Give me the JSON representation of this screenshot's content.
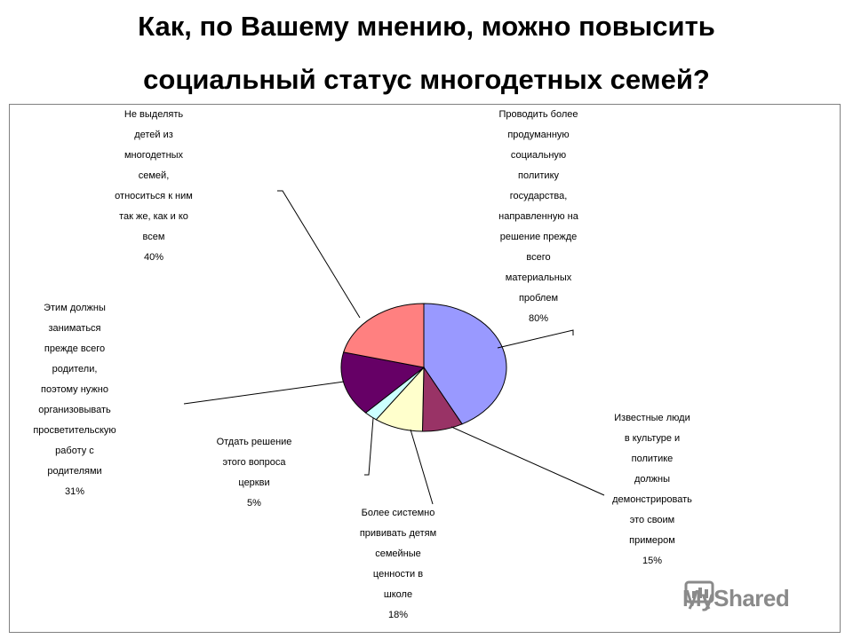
{
  "title_line1": "Как, по Вашему мнению, можно повысить",
  "title_line2": "социальный статус многодетных семей?",
  "chart_data": {
    "type": "pie",
    "slices": [
      {
        "label": "Проводить более\nпродуманную\nсоциальную\nполитику\nгосударства,\nнаправленную на\nрешение прежде\nвсего\nматериальных\nпроблем\n80%",
        "value": 80,
        "color": "#9999ff"
      },
      {
        "label": "Известные люди\nв культуре и\nполитике\nдолжны\nдемонстрировать\nэто своим\nпримером\n15%",
        "value": 15,
        "color": "#993366"
      },
      {
        "label": "Более системно\nпрививать детям\nсемейные\nценности в\nшколе\n18%",
        "value": 18,
        "color": "#ffffcc"
      },
      {
        "label": "Отдать решение\nэтого вопроса\nцеркви\n5%",
        "value": 5,
        "color": "#ccffff"
      },
      {
        "label": "Этим должны\nзаниматься\nпрежде всего\nродители,\nпоэтому нужно\nорганизовывать\nпросветительскую\nработу с\nродителями\n31%",
        "value": 31,
        "color": "#660066"
      },
      {
        "label": "Не выделять\nдетей из\nмногодетных\nсемей,\nотноситься к ним\nтак же, как и ко\nвсем\n40%",
        "value": 40,
        "color": "#ff8080"
      }
    ]
  },
  "watermark": {
    "text": "MyShared",
    "icon": "presentation-board-icon"
  }
}
